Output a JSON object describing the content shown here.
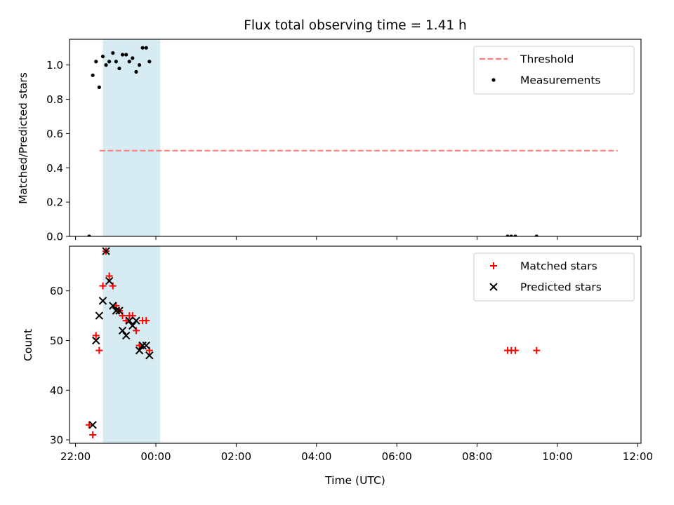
{
  "chart_data": {
    "type": "scatter",
    "title": "Flux total observing time = 1.41 h",
    "xlabel": "Time (UTC)",
    "x_ticks": [
      {
        "label": "22:00",
        "hours": 22
      },
      {
        "label": "00:00",
        "hours": 24
      },
      {
        "label": "02:00",
        "hours": 26
      },
      {
        "label": "04:00",
        "hours": 28
      },
      {
        "label": "06:00",
        "hours": 30
      },
      {
        "label": "08:00",
        "hours": 32
      },
      {
        "label": "10:00",
        "hours": 34
      },
      {
        "label": "12:00",
        "hours": 36
      }
    ],
    "xlim_hours": [
      21.85,
      36.08
    ],
    "observing_window_hours": [
      22.68,
      24.11
    ],
    "shade_color": "#add8e6",
    "panels": [
      {
        "ylabel": "Matched/Predicted stars",
        "ylim": [
          0,
          1.15
        ],
        "yticks": [
          "0.0",
          "0.2",
          "0.4",
          "0.6",
          "0.8",
          "1.0"
        ],
        "legend": "top-right",
        "threshold": {
          "name": "Threshold",
          "value": 0.5,
          "x_from_hours": 22.6,
          "x_to_hours": 35.5,
          "color": "#ff7f7f"
        },
        "series": [
          {
            "name": "Measurements",
            "marker": "dot",
            "color": "#000000",
            "points": [
              [
                22.34,
                0.0
              ],
              [
                22.43,
                0.94
              ],
              [
                22.51,
                1.02
              ],
              [
                22.59,
                0.87
              ],
              [
                22.68,
                1.05
              ],
              [
                22.76,
                1.0
              ],
              [
                22.84,
                1.02
              ],
              [
                22.93,
                1.07
              ],
              [
                23.01,
                1.02
              ],
              [
                23.09,
                0.98
              ],
              [
                23.17,
                1.06
              ],
              [
                23.26,
                1.06
              ],
              [
                23.34,
                1.02
              ],
              [
                23.42,
                1.04
              ],
              [
                23.51,
                0.96
              ],
              [
                23.59,
                1.0
              ],
              [
                23.67,
                1.1
              ],
              [
                23.76,
                1.1
              ],
              [
                23.84,
                1.02
              ],
              [
                32.76,
                0.0
              ],
              [
                32.85,
                0.0
              ],
              [
                32.95,
                0.0
              ],
              [
                33.48,
                0.0
              ]
            ]
          }
        ]
      },
      {
        "ylabel": "Count",
        "ylim": [
          29.3,
          69
        ],
        "yticks": [
          "30",
          "40",
          "50",
          "60"
        ],
        "legend": "top-right",
        "series": [
          {
            "name": "Matched stars",
            "marker": "plus",
            "color": "#ff0000",
            "points": [
              [
                22.34,
                33
              ],
              [
                22.43,
                31
              ],
              [
                22.51,
                51
              ],
              [
                22.59,
                48
              ],
              [
                22.68,
                61
              ],
              [
                22.76,
                68
              ],
              [
                22.84,
                63
              ],
              [
                22.93,
                61
              ],
              [
                23.01,
                57
              ],
              [
                23.09,
                56
              ],
              [
                23.17,
                55
              ],
              [
                23.26,
                54
              ],
              [
                23.34,
                55
              ],
              [
                23.42,
                55
              ],
              [
                23.51,
                52
              ],
              [
                23.59,
                49
              ],
              [
                23.67,
                54
              ],
              [
                23.76,
                54
              ],
              [
                23.84,
                48
              ],
              [
                32.76,
                48
              ],
              [
                32.85,
                48
              ],
              [
                32.95,
                48
              ],
              [
                33.48,
                48
              ]
            ]
          },
          {
            "name": "Predicted stars",
            "marker": "x",
            "color": "#000000",
            "points": [
              [
                22.43,
                33
              ],
              [
                22.51,
                50
              ],
              [
                22.59,
                55
              ],
              [
                22.68,
                58
              ],
              [
                22.76,
                68
              ],
              [
                22.84,
                62
              ],
              [
                22.93,
                57
              ],
              [
                23.01,
                56
              ],
              [
                23.09,
                56
              ],
              [
                23.17,
                52
              ],
              [
                23.26,
                51
              ],
              [
                23.34,
                54
              ],
              [
                23.42,
                53
              ],
              [
                23.51,
                54
              ],
              [
                23.59,
                48
              ],
              [
                23.67,
                49
              ],
              [
                23.76,
                49
              ],
              [
                23.84,
                47
              ]
            ]
          }
        ]
      }
    ]
  }
}
